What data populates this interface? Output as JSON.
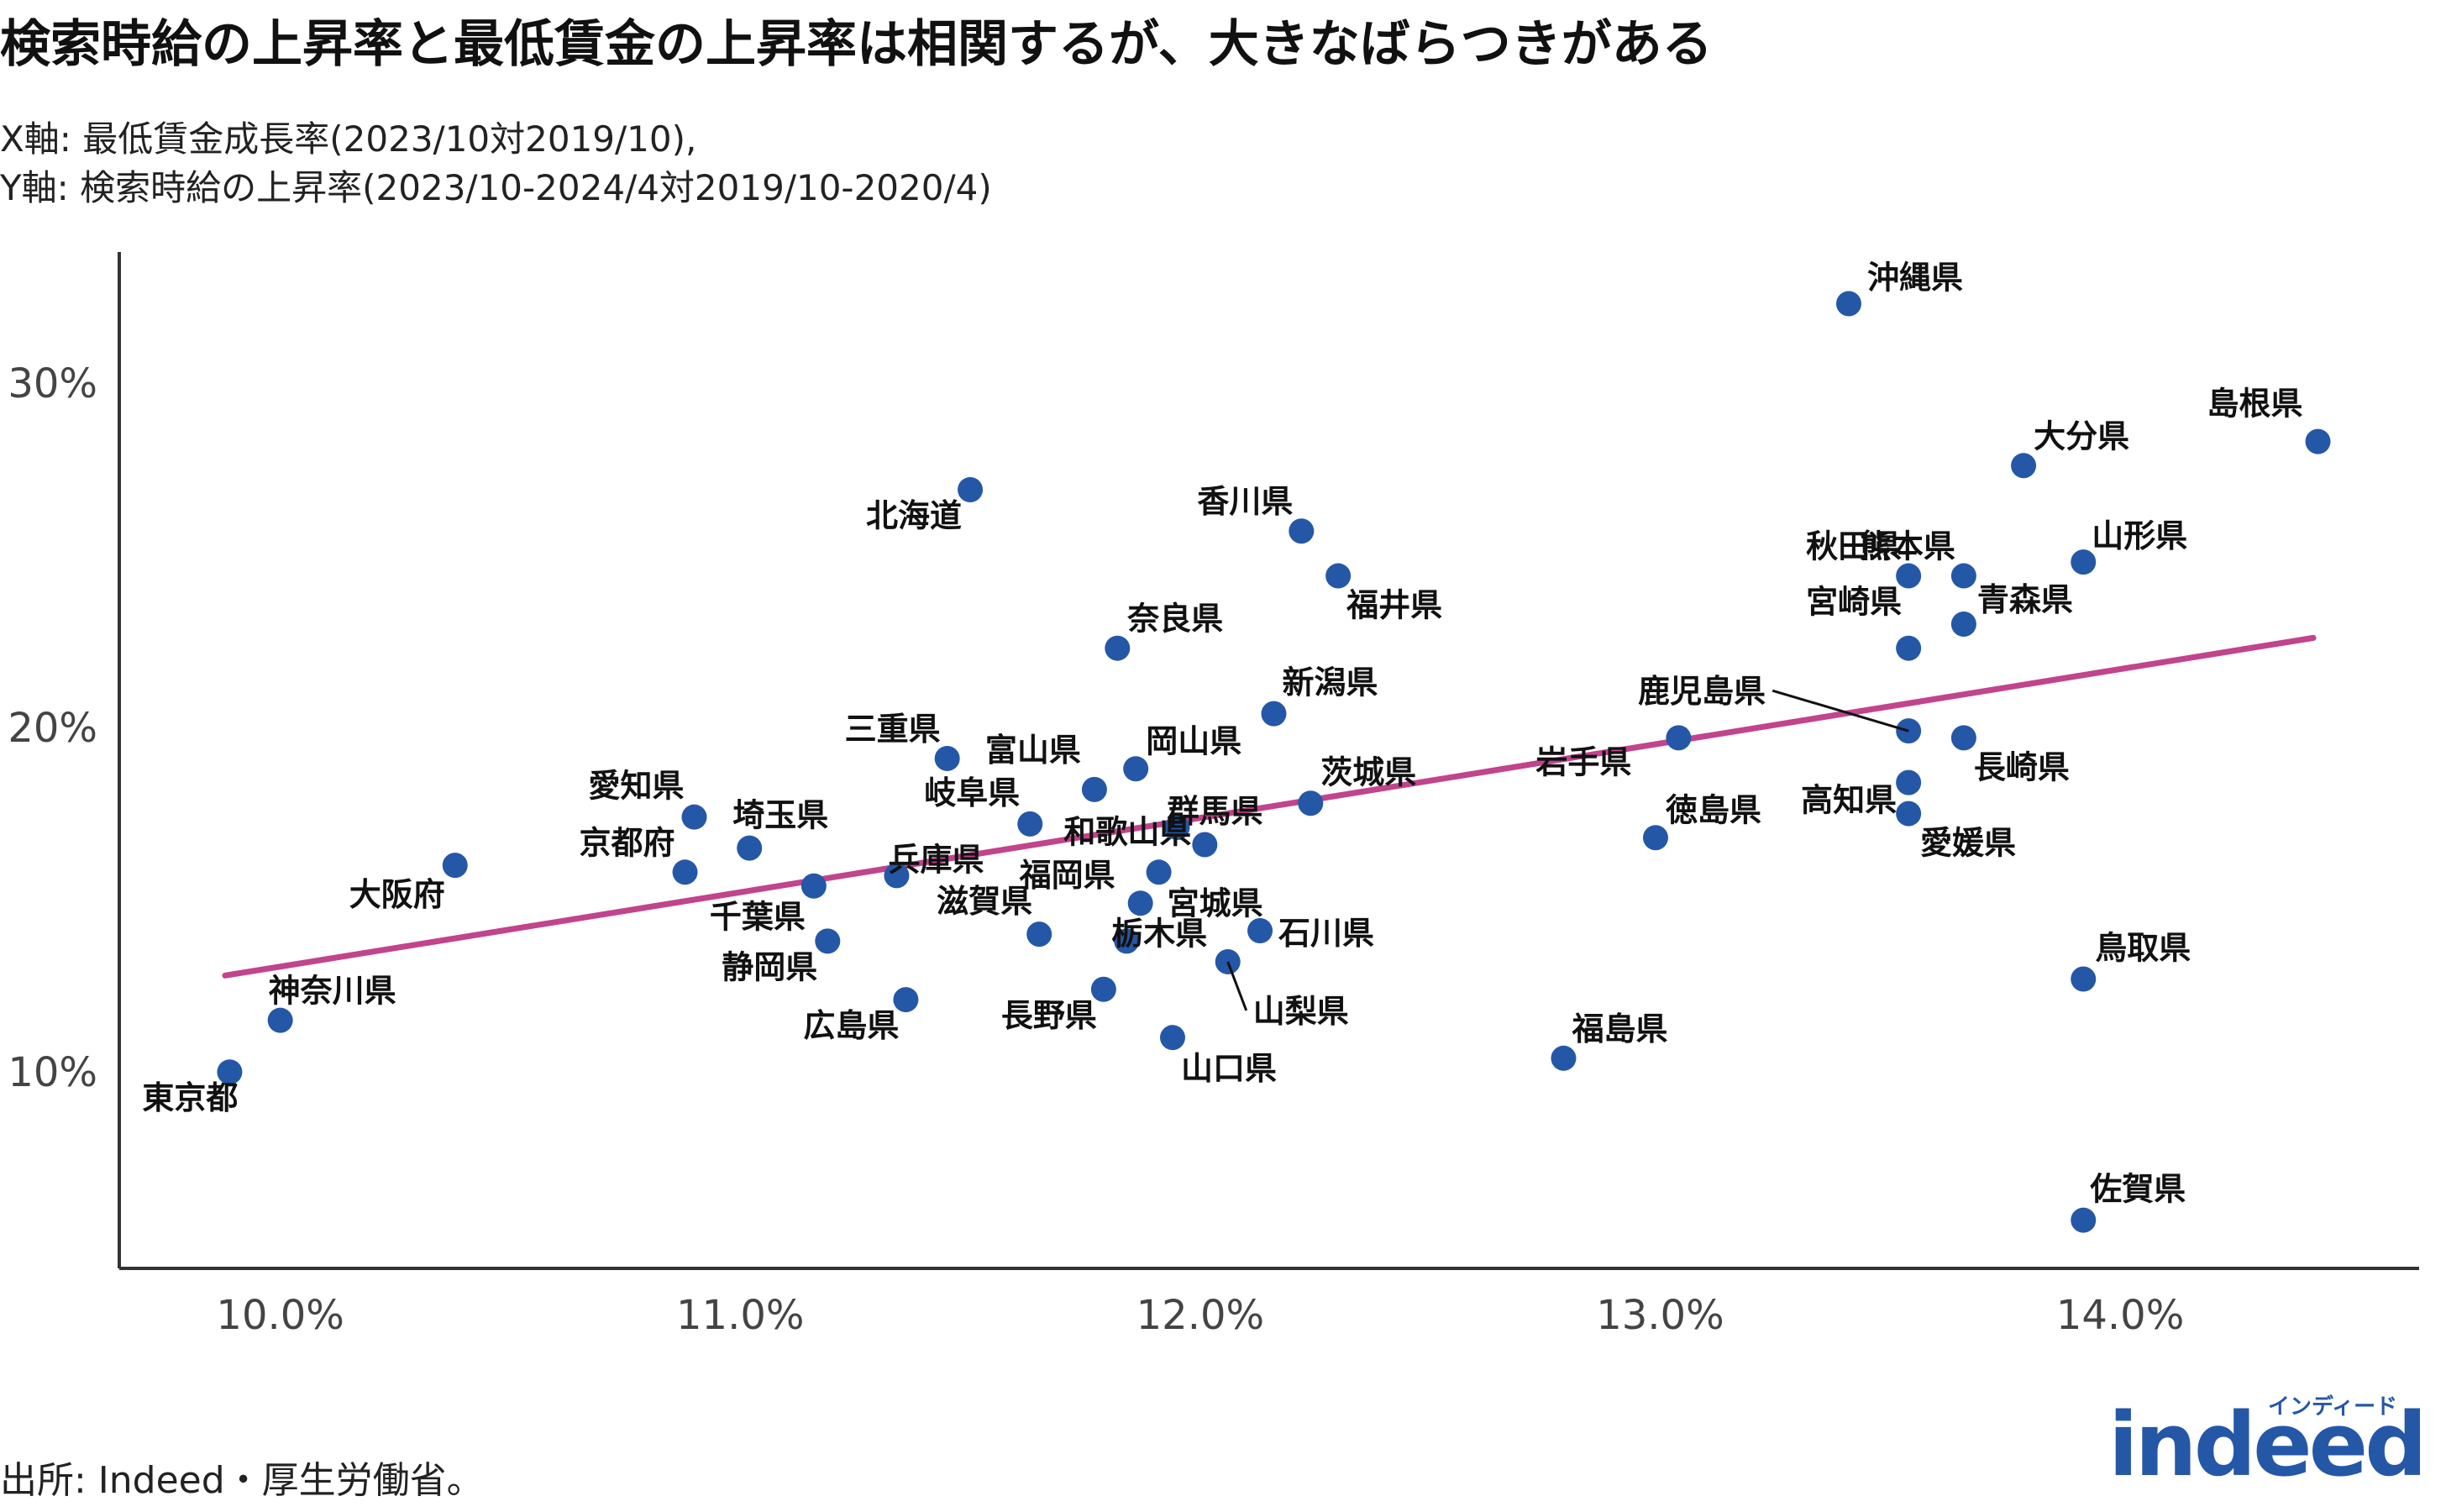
{
  "title": "検索時給の上昇率と最低賃金の上昇率は相関するが、大きなばらつきがある",
  "subtitle_x": "X軸: 最低賃金成長率(2023/10対2019/10),",
  "subtitle_y": "Y軸: 検索時給の上昇率(2023/10-2024/4対2019/10-2020/4)",
  "source": "出所: Indeed・厚生労働省。",
  "logo": {
    "brand": "indeed",
    "kana": "インディード"
  },
  "colors": {
    "point": "#2557a7",
    "trend": "#c1448c",
    "axis": "#333333"
  },
  "chart_data": {
    "type": "scatter",
    "xlim": [
      9.65,
      14.65
    ],
    "ylim": [
      4.3,
      33.8
    ],
    "xticks": [
      10.0,
      11.0,
      12.0,
      13.0,
      14.0
    ],
    "xtick_labels": [
      "10.0%",
      "11.0%",
      "12.0%",
      "13.0%",
      "14.0%"
    ],
    "yticks": [
      10,
      20,
      30
    ],
    "ytick_labels": [
      "10%",
      "20%",
      "30%"
    ],
    "grid": false,
    "trendline": {
      "x": [
        9.88,
        14.42
      ],
      "y": [
        12.8,
        22.6
      ]
    },
    "points": [
      {
        "name": "沖縄県",
        "x": 13.41,
        "y": 32.3
      },
      {
        "name": "島根県",
        "x": 14.43,
        "y": 28.3
      },
      {
        "name": "大分県",
        "x": 13.79,
        "y": 27.6
      },
      {
        "name": "北海道",
        "x": 11.5,
        "y": 26.9
      },
      {
        "name": "香川県",
        "x": 12.22,
        "y": 25.7
      },
      {
        "name": "秋田県",
        "x": 13.54,
        "y": 24.4
      },
      {
        "name": "熊本県",
        "x": 13.66,
        "y": 24.4
      },
      {
        "name": "山形県",
        "x": 13.92,
        "y": 24.8
      },
      {
        "name": "福井県",
        "x": 12.3,
        "y": 24.4
      },
      {
        "name": "青森県",
        "x": 13.66,
        "y": 23.0
      },
      {
        "name": "奈良県",
        "x": 11.82,
        "y": 22.3
      },
      {
        "name": "宮崎県",
        "x": 13.54,
        "y": 22.3
      },
      {
        "name": "新潟県",
        "x": 12.16,
        "y": 20.4
      },
      {
        "name": "鹿児島県",
        "x": 13.54,
        "y": 19.9
      },
      {
        "name": "岩手県",
        "x": 13.04,
        "y": 19.7
      },
      {
        "name": "長崎県",
        "x": 13.66,
        "y": 19.7
      },
      {
        "name": "三重県",
        "x": 11.45,
        "y": 19.1
      },
      {
        "name": "富山県",
        "x": 11.77,
        "y": 18.2
      },
      {
        "name": "岡山県",
        "x": 11.86,
        "y": 18.8
      },
      {
        "name": "高知県",
        "x": 13.54,
        "y": 18.4
      },
      {
        "name": "愛知県",
        "x": 10.9,
        "y": 17.4
      },
      {
        "name": "岐阜県",
        "x": 11.63,
        "y": 17.2
      },
      {
        "name": "群馬県",
        "x": 11.95,
        "y": 17.1
      },
      {
        "name": "茨城県",
        "x": 12.24,
        "y": 17.8
      },
      {
        "name": "愛媛県",
        "x": 13.54,
        "y": 17.5
      },
      {
        "name": "徳島県",
        "x": 12.99,
        "y": 16.8
      },
      {
        "name": "埼玉県",
        "x": 11.02,
        "y": 16.5
      },
      {
        "name": "和歌山県",
        "x": 12.01,
        "y": 16.6
      },
      {
        "name": "大阪府",
        "x": 10.38,
        "y": 16.0
      },
      {
        "name": "京都府",
        "x": 10.88,
        "y": 15.8
      },
      {
        "name": "兵庫県",
        "x": 11.34,
        "y": 15.7
      },
      {
        "name": "宮城県",
        "x": 11.91,
        "y": 15.8
      },
      {
        "name": "千葉県",
        "x": 11.16,
        "y": 15.4
      },
      {
        "name": "福岡県",
        "x": 11.87,
        "y": 14.9
      },
      {
        "name": "石川県",
        "x": 12.13,
        "y": 14.1
      },
      {
        "name": "滋賀県",
        "x": 11.65,
        "y": 14.0
      },
      {
        "name": "静岡県",
        "x": 11.19,
        "y": 13.8
      },
      {
        "name": "栃木県",
        "x": 11.84,
        "y": 13.8
      },
      {
        "name": "山梨県",
        "x": 12.06,
        "y": 13.2
      },
      {
        "name": "鳥取県",
        "x": 13.92,
        "y": 12.7
      },
      {
        "name": "長野県",
        "x": 11.79,
        "y": 12.4
      },
      {
        "name": "広島県",
        "x": 11.36,
        "y": 12.1
      },
      {
        "name": "神奈川県",
        "x": 10.0,
        "y": 11.5
      },
      {
        "name": "山口県",
        "x": 11.94,
        "y": 11.0
      },
      {
        "name": "福島県",
        "x": 12.79,
        "y": 10.4
      },
      {
        "name": "東京都",
        "x": 9.89,
        "y": 10.0
      },
      {
        "name": "佐賀県",
        "x": 13.92,
        "y": 5.7
      }
    ]
  }
}
